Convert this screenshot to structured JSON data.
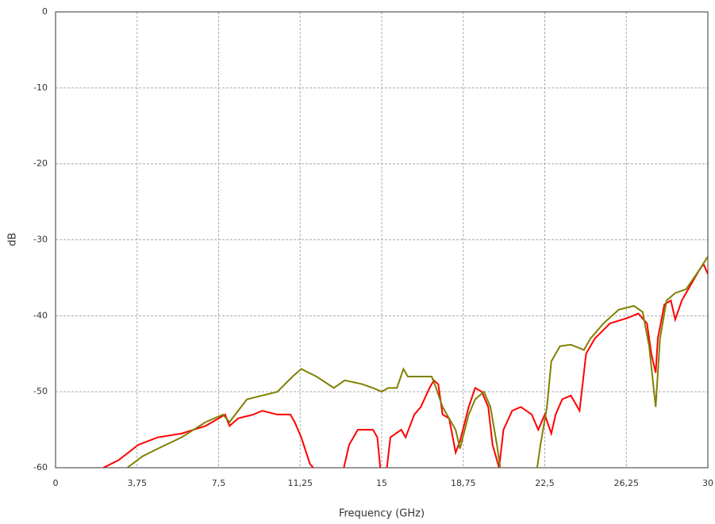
{
  "chart_data": {
    "type": "line",
    "xlabel": "Frequency (GHz)",
    "ylabel": "dB",
    "xlim": [
      0,
      30
    ],
    "ylim": [
      -60,
      0
    ],
    "xticks": [
      0,
      {
        "value": 3.75,
        "label": "3,75"
      },
      {
        "value": 7.5,
        "label": "7,5"
      },
      {
        "value": 11.25,
        "label": "11,25"
      },
      15,
      {
        "value": 18.75,
        "label": "18,75"
      },
      {
        "value": 22.5,
        "label": "22,5"
      },
      {
        "value": 26.25,
        "label": "26,25"
      },
      30
    ],
    "yticks": [
      0,
      -10,
      -20,
      -30,
      -40,
      -50,
      -60
    ],
    "grid": true,
    "series": [
      {
        "color": "#ff0000",
        "x": [
          2.2,
          2.9,
          3.8,
          4.7,
          5.8,
          6.9,
          7.5,
          7.8,
          8.0,
          8.4,
          9.1,
          9.5,
          10.2,
          10.8,
          11.0,
          11.3,
          11.7,
          12.0,
          12.8,
          13.1,
          13.5,
          13.9,
          14.6,
          14.8,
          15.0,
          15.2,
          15.4,
          15.9,
          16.1,
          16.5,
          16.8,
          17.2,
          17.4,
          17.6,
          17.8,
          18.1,
          18.4,
          18.6,
          19.0,
          19.3,
          19.6,
          19.9,
          20.1,
          20.4,
          20.6,
          21.0,
          21.4,
          21.9,
          22.2,
          22.5,
          22.8,
          23.0,
          23.3,
          23.7,
          23.9,
          24.1,
          24.4,
          24.8,
          25.5,
          26.3,
          26.8,
          27.2,
          27.4,
          27.6,
          27.7,
          28.0,
          28.3,
          28.5,
          28.8,
          29.2,
          29.6,
          29.8,
          30.0
        ],
        "values": [
          -60,
          -59,
          -57,
          -56,
          -55.5,
          -54.5,
          -53.5,
          -53,
          -54.5,
          -53.5,
          -53,
          -52.5,
          -53,
          -53,
          -54,
          -56,
          -59.5,
          -60.5,
          -60.5,
          -62,
          -57,
          -55,
          -55,
          -56,
          -62,
          -61,
          -56,
          -55,
          -56,
          -53,
          -52,
          -49.5,
          -48.5,
          -49,
          -53,
          -53.5,
          -58,
          -56.5,
          -52,
          -49.5,
          -50,
          -52,
          -57,
          -60,
          -55,
          -52.5,
          -52,
          -53,
          -55,
          -53,
          -55.5,
          -53,
          -51,
          -50.5,
          -51.5,
          -52.5,
          -45,
          -43,
          -41,
          -40.3,
          -39.7,
          -41,
          -45,
          -47.5,
          -43,
          -38.5,
          -38,
          -40.5,
          -38,
          -36,
          -34,
          -33.2,
          -34.5
        ]
      },
      {
        "color": "#808000",
        "x": [
          2.6,
          3.3,
          4.0,
          4.7,
          5.8,
          6.9,
          7.7,
          8.0,
          8.4,
          8.8,
          9.5,
          10.2,
          10.9,
          11.3,
          12.0,
          12.8,
          13.3,
          14.1,
          14.6,
          15.0,
          15.3,
          15.7,
          16.0,
          16.2,
          16.8,
          17.3,
          17.5,
          17.8,
          18.1,
          18.4,
          18.6,
          19.0,
          19.3,
          19.7,
          20.0,
          20.3,
          20.5,
          22.1,
          22.3,
          22.6,
          22.8,
          23.2,
          23.7,
          24.3,
          24.6,
          25.2,
          25.9,
          26.6,
          27.0,
          27.3,
          27.6,
          27.8,
          28.1,
          28.5,
          29.0,
          29.6,
          30.0
        ],
        "values": [
          -62,
          -60,
          -58.5,
          -57.5,
          -56,
          -54,
          -53,
          -54,
          -52.5,
          -51,
          -50.5,
          -50,
          -48,
          -47,
          -48,
          -49.5,
          -48.5,
          -49,
          -49.5,
          -50,
          -49.5,
          -49.5,
          -47,
          -48,
          -48,
          -48,
          -49.5,
          -52,
          -53.5,
          -55,
          -57.5,
          -53,
          -51,
          -50,
          -52,
          -57,
          -61,
          -61,
          -57,
          -52,
          -46,
          -44,
          -43.8,
          -44.5,
          -43,
          -41,
          -39.2,
          -38.7,
          -39.5,
          -44,
          -52,
          -43,
          -38,
          -37,
          -36.5,
          -34,
          -32.2
        ]
      }
    ]
  }
}
